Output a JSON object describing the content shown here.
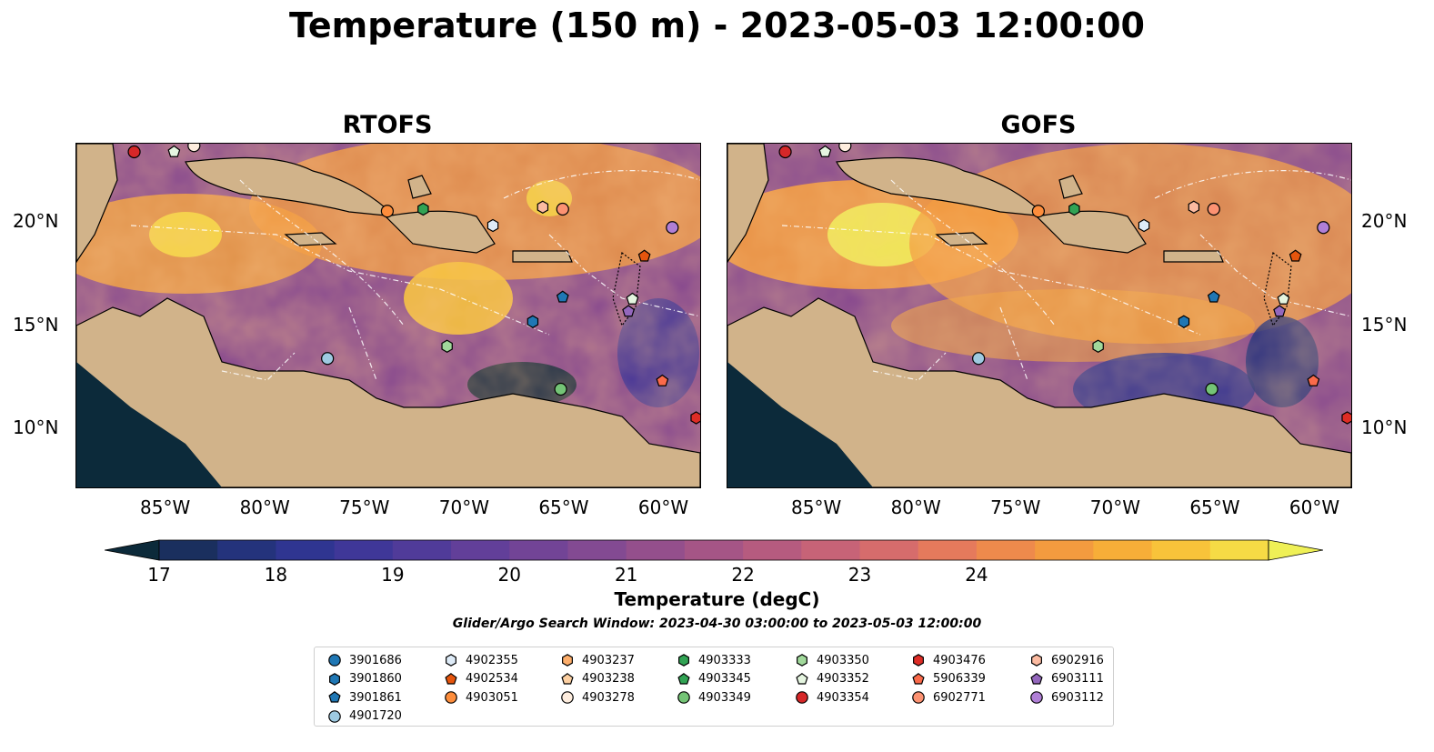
{
  "title": "Temperature (150 m) - 2023-05-03 12:00:00",
  "panels": [
    {
      "title": "RTOFS"
    },
    {
      "title": "GOFS"
    }
  ],
  "axes": {
    "lon_ticks": [
      "85°W",
      "80°W",
      "75°W",
      "70°W",
      "65°W",
      "60°W"
    ],
    "lat_ticks": [
      "20°N",
      "15°N",
      "10°N"
    ]
  },
  "colorbar": {
    "label": "Temperature (degC)",
    "ticks": [
      "17",
      "18",
      "19",
      "20",
      "21",
      "22",
      "23",
      "24"
    ],
    "range": [
      16.5,
      25.0
    ],
    "colors": [
      "#0c2a3a",
      "#1a2f5e",
      "#24337c",
      "#2f3591",
      "#3f3798",
      "#503b99",
      "#623f99",
      "#724496",
      "#834a92",
      "#944f8c",
      "#a55586",
      "#b65b7f",
      "#c76377",
      "#d66c6c",
      "#e57a5c",
      "#ee8a4c",
      "#f39b3f",
      "#f7ae38",
      "#f8c33a",
      "#f6db45",
      "#eff056"
    ]
  },
  "search_window": "Glider/Argo Search Window: 2023-04-30 03:00:00 to 2023-05-03 12:00:00",
  "legend": [
    {
      "label": "3901686",
      "color": "#1f77b4",
      "shape": "circle"
    },
    {
      "label": "3901860",
      "color": "#1f77b4",
      "shape": "hexagon"
    },
    {
      "label": "3901861",
      "color": "#1f77b4",
      "shape": "pentagon"
    },
    {
      "label": "4901720",
      "color": "#9ecae1",
      "shape": "circle"
    },
    {
      "label": "4902355",
      "color": "#deebf7",
      "shape": "hexagon"
    },
    {
      "label": "4902534",
      "color": "#e6550d",
      "shape": "pentagon"
    },
    {
      "label": "4903051",
      "color": "#fd8d3c",
      "shape": "circle"
    },
    {
      "label": "4903237",
      "color": "#fdae6b",
      "shape": "hexagon"
    },
    {
      "label": "4903238",
      "color": "#fdd0a2",
      "shape": "pentagon"
    },
    {
      "label": "4903278",
      "color": "#feedde",
      "shape": "circle"
    },
    {
      "label": "4903333",
      "color": "#31a354",
      "shape": "hexagon"
    },
    {
      "label": "4903345",
      "color": "#31a354",
      "shape": "pentagon"
    },
    {
      "label": "4903349",
      "color": "#74c476",
      "shape": "circle"
    },
    {
      "label": "4903350",
      "color": "#a1d99b",
      "shape": "hexagon"
    },
    {
      "label": "4903352",
      "color": "#e5f5e0",
      "shape": "pentagon"
    },
    {
      "label": "4903354",
      "color": "#d62728",
      "shape": "circle"
    },
    {
      "label": "4903476",
      "color": "#de2d26",
      "shape": "hexagon"
    },
    {
      "label": "5906339",
      "color": "#fb6a4a",
      "shape": "pentagon"
    },
    {
      "label": "6902771",
      "color": "#fc9272",
      "shape": "circle"
    },
    {
      "label": "6902916",
      "color": "#fcbba1",
      "shape": "hexagon"
    },
    {
      "label": "6903111",
      "color": "#9467bd",
      "shape": "pentagon"
    },
    {
      "label": "6903112",
      "color": "#b07fd6",
      "shape": "circle"
    }
  ],
  "floats": [
    {
      "lon": -86.6,
      "lat": 23.4,
      "id": "4903354"
    },
    {
      "lon": -84.6,
      "lat": 23.4,
      "id": "4903352"
    },
    {
      "lon": -83.6,
      "lat": 23.7,
      "id": "4903278"
    },
    {
      "lon": -73.9,
      "lat": 20.5,
      "id": "4903051"
    },
    {
      "lon": -72.1,
      "lat": 20.6,
      "id": "4903333"
    },
    {
      "lon": -68.6,
      "lat": 19.8,
      "id": "4902355"
    },
    {
      "lon": -66.1,
      "lat": 20.7,
      "id": "6902916"
    },
    {
      "lon": -65.1,
      "lat": 20.6,
      "id": "6902771"
    },
    {
      "lon": -59.6,
      "lat": 19.7,
      "id": "6903112"
    },
    {
      "lon": -61.0,
      "lat": 18.3,
      "id": "4902534"
    },
    {
      "lon": -65.1,
      "lat": 16.3,
      "id": "3901861"
    },
    {
      "lon": -66.6,
      "lat": 15.1,
      "id": "3901860"
    },
    {
      "lon": -61.6,
      "lat": 16.2,
      "id": "4903352"
    },
    {
      "lon": -61.8,
      "lat": 15.6,
      "id": "6903111"
    },
    {
      "lon": -70.9,
      "lat": 13.9,
      "id": "4903350"
    },
    {
      "lon": -76.9,
      "lat": 13.3,
      "id": "4901720"
    },
    {
      "lon": -65.2,
      "lat": 11.8,
      "id": "4903349"
    },
    {
      "lon": -60.1,
      "lat": 12.2,
      "id": "5906339"
    },
    {
      "lon": -58.4,
      "lat": 10.4,
      "id": "4903476"
    }
  ]
}
